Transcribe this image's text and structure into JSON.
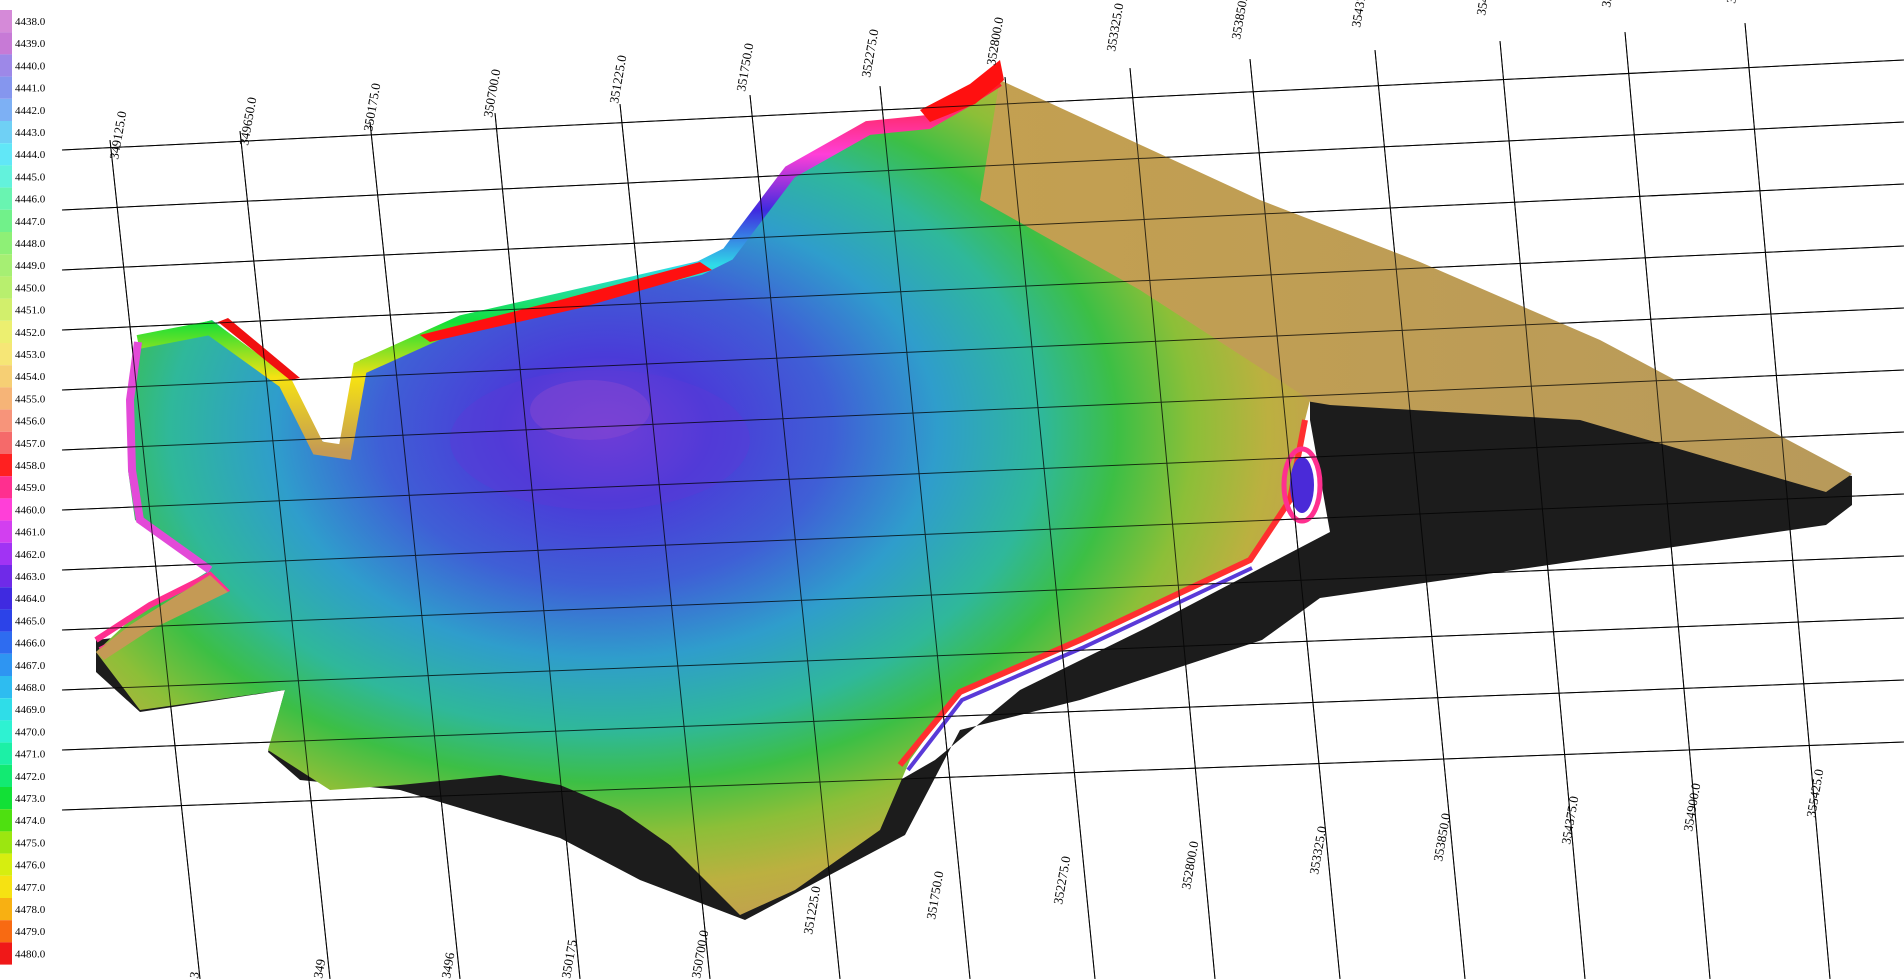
{
  "legend": {
    "values": [
      "4438.0",
      "4439.0",
      "4440.0",
      "4441.0",
      "4442.0",
      "4443.0",
      "4444.0",
      "4445.0",
      "4446.0",
      "4447.0",
      "4448.0",
      "4449.0",
      "4450.0",
      "4451.0",
      "4452.0",
      "4453.0",
      "4454.0",
      "4455.0",
      "4456.0",
      "4457.0",
      "4458.0",
      "4459.0",
      "4460.0",
      "4461.0",
      "4462.0",
      "4463.0",
      "4464.0",
      "4465.0",
      "4466.0",
      "4467.0",
      "4468.0",
      "4469.0",
      "4470.0",
      "4471.0",
      "4472.0",
      "4473.0",
      "4474.0",
      "4475.0",
      "4476.0",
      "4477.0",
      "4478.0",
      "4479.0",
      "4480.0"
    ],
    "colors": [
      "#d58ad8",
      "#c77ad6",
      "#9d88e8",
      "#8596ee",
      "#7db0f4",
      "#6fd0f5",
      "#61e7f7",
      "#63f2dc",
      "#69f4b1",
      "#71f18a",
      "#8ef076",
      "#a6ef73",
      "#b8ef6e",
      "#d2ef6c",
      "#ecef70",
      "#f6e676",
      "#f6cf74",
      "#f6b477",
      "#f7947a",
      "#f56a6a",
      "#ff2020",
      "#ff2f8f",
      "#ff3fd8",
      "#d23ff0",
      "#a133f4",
      "#6f2ae8",
      "#3f2ae0",
      "#2c43e8",
      "#2e6cf0",
      "#2e95f2",
      "#2ebcf0",
      "#2fdde8",
      "#2ef2d2",
      "#1cf0a6",
      "#12ea72",
      "#12e036",
      "#4ee010",
      "#9ce610",
      "#d6ee10",
      "#f6e212",
      "#f8b012",
      "#f86a12",
      "#f01818"
    ]
  },
  "axes": {
    "x_ticks_top": [
      "349125.0",
      "349650.0",
      "350175.0",
      "350700.0",
      "351225.0",
      "351750.0",
      "352275.0",
      "352800.0",
      "353325.0",
      "353850.0",
      "35437",
      "3549",
      "35",
      "355"
    ],
    "x_ticks_bottom": [
      "351225.0",
      "351750.0",
      "352275.0",
      "352800.0",
      "353325.0",
      "353850.0",
      "354375.0",
      "354900.0",
      "355425.0"
    ],
    "y_ticks_bottom": [
      "3",
      "349",
      "3496",
      "350175",
      "350700.0"
    ]
  },
  "colors": {
    "deep": "#3f2ae0",
    "mid": "#2ea8c8",
    "green": "#3fbf4a",
    "shore": "#b8b040",
    "land": "#c49a55",
    "rim": "#ff1a1a",
    "side": "#1c1c1c",
    "grid": "#000000"
  }
}
